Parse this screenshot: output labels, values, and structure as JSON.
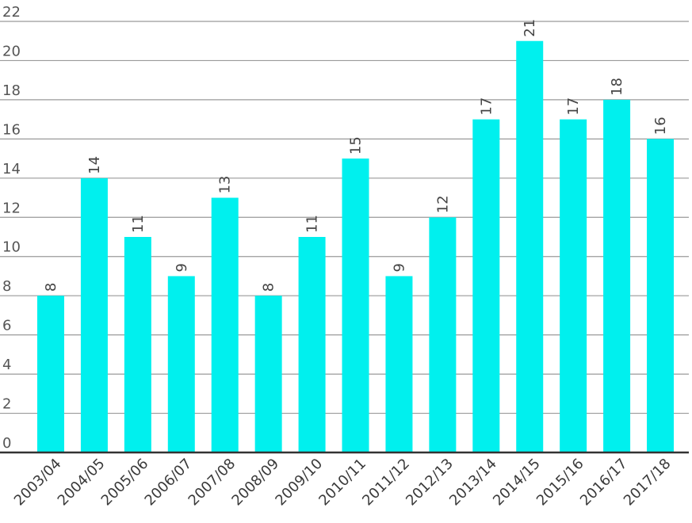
{
  "chart_data": {
    "type": "bar",
    "title": "",
    "xlabel": "",
    "ylabel": "",
    "categories": [
      "2003/04",
      "2004/05",
      "2005/06",
      "2006/07",
      "2007/08",
      "2008/09",
      "2009/10",
      "2010/11",
      "2011/12",
      "2012/13",
      "2013/14",
      "2014/15",
      "2015/16",
      "2016/17",
      "2017/18"
    ],
    "values": [
      8,
      14,
      11,
      9,
      13,
      8,
      11,
      15,
      9,
      12,
      17,
      21,
      17,
      18,
      16
    ],
    "ylim": [
      0,
      22
    ],
    "yticks": [
      0,
      2,
      4,
      6,
      8,
      10,
      12,
      14,
      16,
      18,
      20,
      22
    ],
    "grid": true,
    "legend": "none",
    "colors": {
      "bar": "#00f0ee",
      "grid": "#9a9a9a",
      "axis": "#333333"
    }
  }
}
